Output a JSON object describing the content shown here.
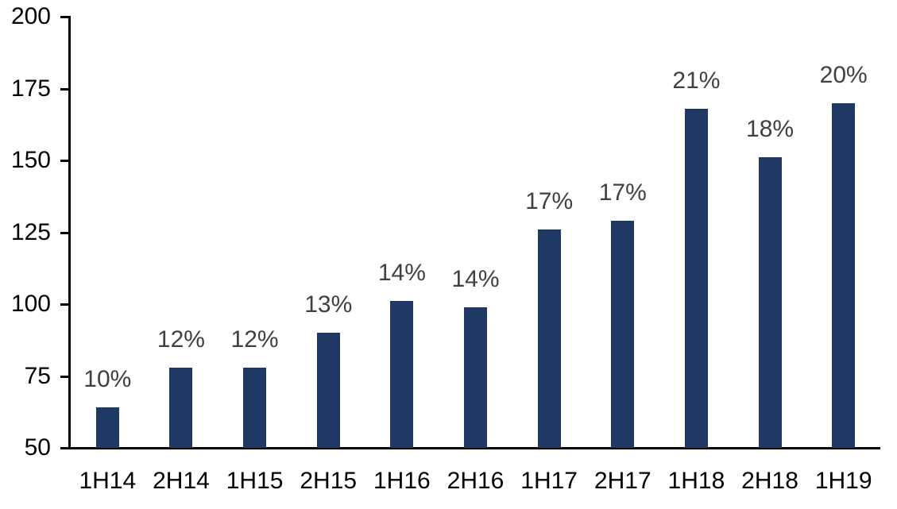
{
  "chart_data": {
    "type": "bar",
    "title": "",
    "xlabel": "",
    "ylabel": "",
    "categories": [
      "1H14",
      "2H14",
      "1H15",
      "2H15",
      "1H16",
      "2H16",
      "1H17",
      "2H17",
      "1H18",
      "2H18",
      "1H19"
    ],
    "series": [
      {
        "name": "value",
        "values": [
          64,
          78,
          78,
          90,
          101,
          99,
          126,
          129,
          168,
          151,
          170
        ],
        "data_labels": [
          "10%",
          "12%",
          "12%",
          "13%",
          "14%",
          "14%",
          "17%",
          "17%",
          "21%",
          "18%",
          "20%"
        ]
      }
    ],
    "ylim": [
      50,
      200
    ],
    "yticks": [
      50,
      75,
      100,
      125,
      150,
      175,
      200
    ],
    "grid": false,
    "legend": false,
    "colors": {
      "bar": "#1F3864",
      "data_label": "#404040",
      "axis_line": "#000000",
      "tick_label": "#000000",
      "background": "#FFFFFF"
    }
  }
}
